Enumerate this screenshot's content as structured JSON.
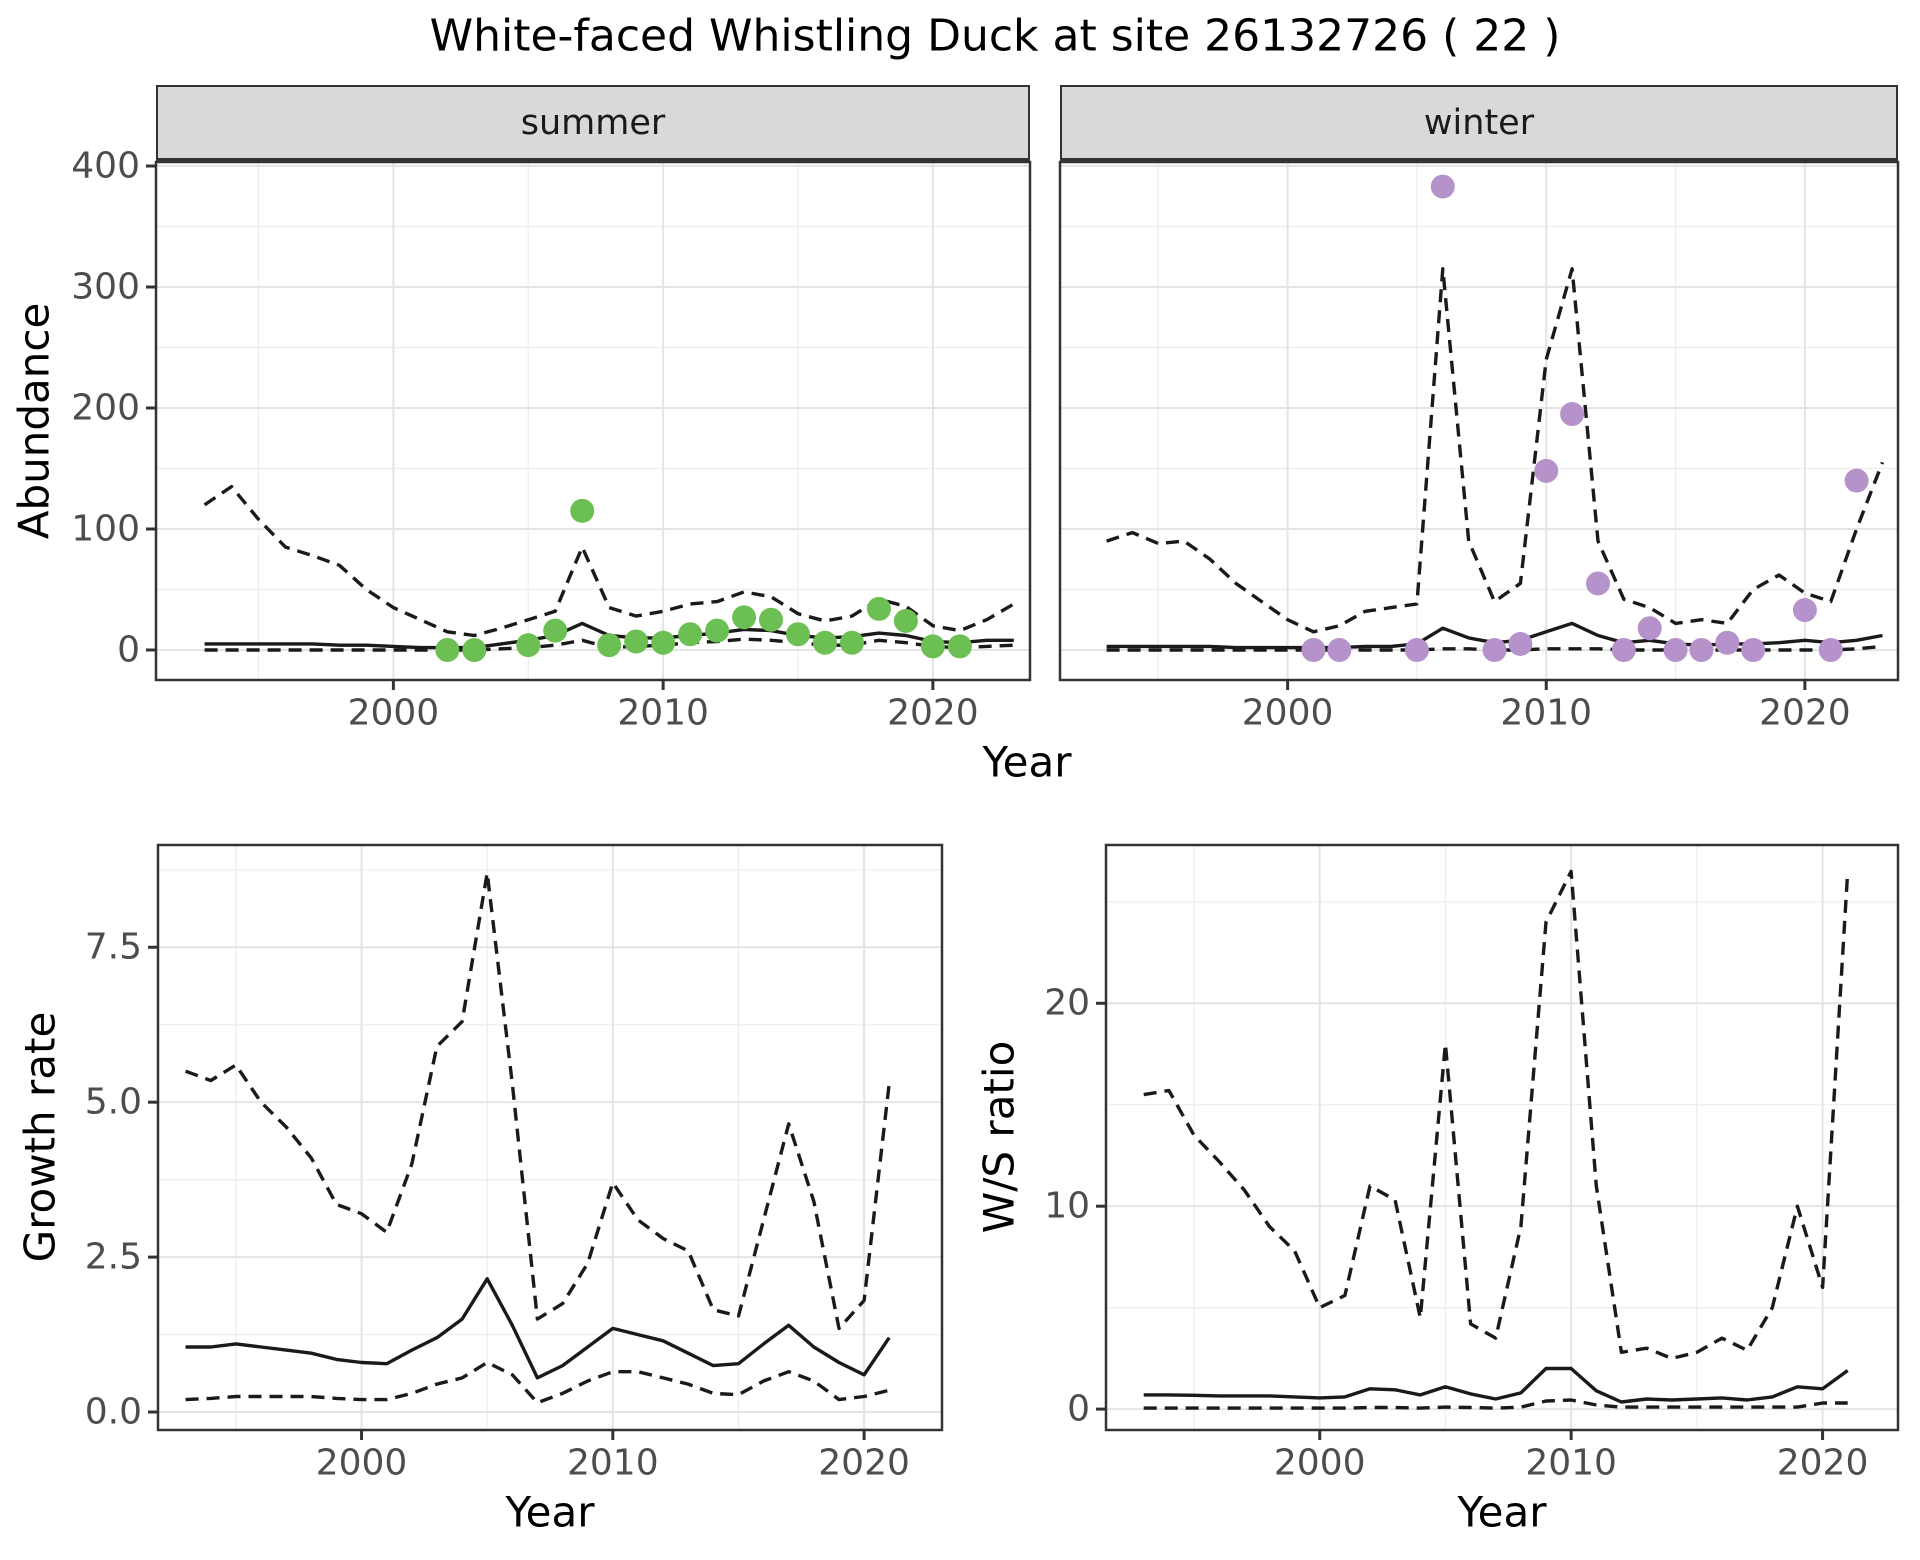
{
  "title": "White-faced Whistling Duck at site 26132726 ( 22 )",
  "facets": {
    "summer": "summer",
    "winter": "winter"
  },
  "axes": {
    "top": {
      "ylabel": "Abundance",
      "xlabel": "Year"
    },
    "growth": {
      "ylabel": "Growth rate",
      "xlabel": "Year"
    },
    "ws": {
      "ylabel": "W/S ratio",
      "xlabel": "Year"
    }
  },
  "colors": {
    "summer_point": "#6cbf53",
    "winter_point": "#b592c9",
    "line": "#1a1a1a",
    "strip_bg": "#d9d9d9",
    "panel_border": "#333333",
    "grid_major": "#e4e4e4",
    "grid_minor": "#efefef",
    "tick_text": "#4d4d4d"
  },
  "chart_data": [
    {
      "id": "summer",
      "type": "line",
      "facet_label": "summer",
      "xlabel": "Year",
      "ylabel": "Abundance",
      "xlim": [
        1991.2,
        2023.6
      ],
      "ylim": [
        -24.8,
        403.3
      ],
      "x_ticks": [
        2000,
        2010,
        2020
      ],
      "x_tick_labels": [
        "2000",
        "2010",
        "2020"
      ],
      "x_minor": [
        1995,
        2005,
        2015
      ],
      "y_ticks": [
        0,
        100,
        200,
        300,
        400
      ],
      "y_tick_labels": [
        "0",
        "100",
        "200",
        "300",
        "400"
      ],
      "y_minor": [
        50,
        150,
        250,
        350
      ],
      "show_y_axis": true,
      "series": [
        {
          "name": "upper-ci",
          "style": "dashed",
          "x": [
            1993,
            1994,
            1995,
            1996,
            1997,
            1998,
            1999,
            2000,
            2001,
            2002,
            2003,
            2004,
            2005,
            2006,
            2007,
            2008,
            2009,
            2010,
            2011,
            2012,
            2013,
            2014,
            2015,
            2016,
            2017,
            2018,
            2019,
            2020,
            2021,
            2022,
            2023
          ],
          "y": [
            120,
            135,
            108,
            85,
            78,
            70,
            50,
            35,
            25,
            15,
            12,
            18,
            25,
            32,
            85,
            35,
            28,
            32,
            38,
            40,
            48,
            44,
            30,
            24,
            28,
            42,
            36,
            20,
            16,
            25,
            38
          ]
        },
        {
          "name": "median",
          "style": "solid",
          "x": [
            1993,
            1994,
            1995,
            1996,
            1997,
            1998,
            1999,
            2000,
            2001,
            2002,
            2003,
            2004,
            2005,
            2006,
            2007,
            2008,
            2009,
            2010,
            2011,
            2012,
            2013,
            2014,
            2015,
            2016,
            2017,
            2018,
            2019,
            2020,
            2021,
            2022,
            2023
          ],
          "y": [
            5,
            5,
            5,
            5,
            5,
            4,
            4,
            3,
            2,
            2,
            2,
            5,
            8,
            12,
            22,
            12,
            10,
            10,
            12,
            14,
            17,
            16,
            12,
            10,
            11,
            14,
            12,
            7,
            6,
            8,
            8
          ]
        },
        {
          "name": "lower-ci",
          "style": "dashed",
          "x": [
            1993,
            1994,
            1995,
            1996,
            1997,
            1998,
            1999,
            2000,
            2001,
            2002,
            2003,
            2004,
            2005,
            2006,
            2007,
            2008,
            2009,
            2010,
            2011,
            2012,
            2013,
            2014,
            2015,
            2016,
            2017,
            2018,
            2019,
            2020,
            2021,
            2022,
            2023
          ],
          "y": [
            0,
            0,
            0,
            0,
            0,
            0,
            0,
            0,
            0,
            0,
            0,
            1,
            2,
            4,
            8,
            2,
            3,
            4,
            6,
            7,
            9,
            8,
            6,
            4,
            4,
            8,
            6,
            3,
            2,
            3,
            4
          ]
        },
        {
          "name": "observed-counts",
          "style": "points",
          "color": "#6cbf53",
          "x": [
            2002,
            2003,
            2005,
            2006,
            2007,
            2008,
            2009,
            2010,
            2011,
            2012,
            2013,
            2014,
            2015,
            2016,
            2017,
            2018,
            2019,
            2020,
            2021
          ],
          "y": [
            0,
            0,
            4,
            16,
            115,
            4,
            7,
            6,
            13,
            16,
            27,
            25,
            13,
            6,
            6,
            34,
            24,
            3,
            3
          ]
        }
      ]
    },
    {
      "id": "winter",
      "type": "line",
      "facet_label": "winter",
      "xlabel": "Year",
      "ylabel": "Abundance",
      "xlim": [
        1991.2,
        2023.6
      ],
      "ylim": [
        -24.8,
        403.3
      ],
      "x_ticks": [
        2000,
        2010,
        2020
      ],
      "x_tick_labels": [
        "2000",
        "2010",
        "2020"
      ],
      "x_minor": [
        1995,
        2005,
        2015
      ],
      "y_ticks": [
        0,
        100,
        200,
        300,
        400
      ],
      "y_tick_labels": [
        "0",
        "100",
        "200",
        "300",
        "400"
      ],
      "y_minor": [
        50,
        150,
        250,
        350
      ],
      "show_y_axis": false,
      "series": [
        {
          "name": "upper-ci",
          "style": "dashed",
          "x": [
            1993,
            1994,
            1995,
            1996,
            1997,
            1998,
            1999,
            2000,
            2001,
            2002,
            2003,
            2004,
            2005,
            2006,
            2007,
            2008,
            2009,
            2010,
            2011,
            2012,
            2013,
            2014,
            2015,
            2016,
            2017,
            2018,
            2019,
            2020,
            2021,
            2022,
            2023
          ],
          "y": [
            90,
            97,
            88,
            90,
            75,
            55,
            40,
            25,
            15,
            20,
            32,
            35,
            38,
            315,
            90,
            40,
            55,
            240,
            315,
            90,
            42,
            35,
            22,
            25,
            22,
            50,
            62,
            47,
            40,
            100,
            155
          ]
        },
        {
          "name": "median",
          "style": "solid",
          "x": [
            1993,
            1994,
            1995,
            1996,
            1997,
            1998,
            1999,
            2000,
            2001,
            2002,
            2003,
            2004,
            2005,
            2006,
            2007,
            2008,
            2009,
            2010,
            2011,
            2012,
            2013,
            2014,
            2015,
            2016,
            2017,
            2018,
            2019,
            2020,
            2021,
            2022,
            2023
          ],
          "y": [
            3,
            3,
            3,
            3,
            3,
            2,
            2,
            2,
            2,
            2,
            3,
            3,
            5,
            18,
            10,
            6,
            8,
            15,
            22,
            12,
            6,
            8,
            5,
            4,
            5,
            5,
            6,
            8,
            6,
            8,
            12
          ]
        },
        {
          "name": "lower-ci",
          "style": "dashed",
          "x": [
            1993,
            1994,
            1995,
            1996,
            1997,
            1998,
            1999,
            2000,
            2001,
            2002,
            2003,
            2004,
            2005,
            2006,
            2007,
            2008,
            2009,
            2010,
            2011,
            2012,
            2013,
            2014,
            2015,
            2016,
            2017,
            2018,
            2019,
            2020,
            2021,
            2022,
            2023
          ],
          "y": [
            0,
            0,
            0,
            0,
            0,
            0,
            0,
            0,
            0,
            0,
            0,
            0,
            0,
            1,
            1,
            0,
            0,
            1,
            1,
            1,
            0,
            0,
            0,
            0,
            0,
            0,
            0,
            0,
            0,
            1,
            3
          ]
        },
        {
          "name": "observed-counts",
          "style": "points",
          "color": "#b592c9",
          "x": [
            2001,
            2002,
            2005,
            2006,
            2008,
            2009,
            2010,
            2011,
            2012,
            2013,
            2014,
            2015,
            2016,
            2017,
            2018,
            2020,
            2021,
            2022
          ],
          "y": [
            0,
            0,
            0,
            383,
            0,
            5,
            148,
            195,
            55,
            0,
            18,
            0,
            0,
            6,
            0,
            33,
            0,
            140
          ]
        }
      ]
    },
    {
      "id": "growth",
      "type": "line",
      "facet_label": "",
      "xlabel": "Year",
      "ylabel": "Growth rate",
      "xlim": [
        1991.9,
        2023.1
      ],
      "ylim": [
        -0.29,
        9.15
      ],
      "x_ticks": [
        2000,
        2010,
        2020
      ],
      "x_tick_labels": [
        "2000",
        "2010",
        "2020"
      ],
      "x_minor": [
        1995,
        2005,
        2015
      ],
      "y_ticks": [
        0,
        2.5,
        5,
        7.5
      ],
      "y_tick_labels": [
        "0.0",
        "2.5",
        "5.0",
        "7.5"
      ],
      "y_minor": [
        1.25,
        3.75,
        6.25,
        8.75
      ],
      "show_y_axis": true,
      "series": [
        {
          "name": "upper-ci",
          "style": "dashed",
          "x": [
            1993,
            1994,
            1995,
            1996,
            1997,
            1998,
            1999,
            2000,
            2001,
            2002,
            2003,
            2004,
            2005,
            2006,
            2007,
            2008,
            2009,
            2010,
            2011,
            2012,
            2013,
            2014,
            2015,
            2016,
            2017,
            2018,
            2019,
            2020,
            2021
          ],
          "y": [
            5.5,
            5.35,
            5.6,
            5.0,
            4.6,
            4.1,
            3.35,
            3.2,
            2.9,
            4.0,
            5.9,
            6.3,
            8.7,
            5.3,
            1.5,
            1.75,
            2.4,
            3.7,
            3.1,
            2.8,
            2.6,
            1.65,
            1.55,
            3.1,
            4.65,
            3.4,
            1.35,
            1.8,
            5.3
          ]
        },
        {
          "name": "median",
          "style": "solid",
          "x": [
            1993,
            1994,
            1995,
            1996,
            1997,
            1998,
            1999,
            2000,
            2001,
            2002,
            2003,
            2004,
            2005,
            2006,
            2007,
            2008,
            2009,
            2010,
            2011,
            2012,
            2013,
            2014,
            2015,
            2016,
            2017,
            2018,
            2019,
            2020,
            2021
          ],
          "y": [
            1.05,
            1.05,
            1.1,
            1.05,
            1.0,
            0.95,
            0.85,
            0.8,
            0.78,
            1.0,
            1.2,
            1.5,
            2.15,
            1.4,
            0.55,
            0.75,
            1.05,
            1.35,
            1.25,
            1.15,
            0.95,
            0.75,
            0.78,
            1.1,
            1.4,
            1.05,
            0.8,
            0.6,
            1.2
          ]
        },
        {
          "name": "lower-ci",
          "style": "dashed",
          "x": [
            1993,
            1994,
            1995,
            1996,
            1997,
            1998,
            1999,
            2000,
            2001,
            2002,
            2003,
            2004,
            2005,
            2006,
            2007,
            2008,
            2009,
            2010,
            2011,
            2012,
            2013,
            2014,
            2015,
            2016,
            2017,
            2018,
            2019,
            2020,
            2021
          ],
          "y": [
            0.2,
            0.22,
            0.25,
            0.25,
            0.25,
            0.25,
            0.22,
            0.2,
            0.2,
            0.3,
            0.45,
            0.55,
            0.8,
            0.6,
            0.15,
            0.3,
            0.5,
            0.65,
            0.65,
            0.55,
            0.45,
            0.3,
            0.28,
            0.5,
            0.65,
            0.5,
            0.2,
            0.25,
            0.35
          ]
        }
      ]
    },
    {
      "id": "ws",
      "type": "line",
      "facet_label": "",
      "xlabel": "Year",
      "ylabel": "W/S ratio",
      "xlim": [
        1991.5,
        2023.0
      ],
      "ylim": [
        -1.03,
        27.8
      ],
      "x_ticks": [
        2000,
        2010,
        2020
      ],
      "x_tick_labels": [
        "2000",
        "2010",
        "2020"
      ],
      "x_minor": [
        1995,
        2005,
        2015
      ],
      "y_ticks": [
        0,
        10,
        20
      ],
      "y_tick_labels": [
        "0",
        "10",
        "20"
      ],
      "y_minor": [
        5,
        15,
        25
      ],
      "show_y_axis": true,
      "series": [
        {
          "name": "upper-ci",
          "style": "dashed",
          "x": [
            1993,
            1994,
            1995,
            1996,
            1997,
            1998,
            1999,
            2000,
            2001,
            2002,
            2003,
            2004,
            2005,
            2006,
            2007,
            2008,
            2009,
            2010,
            2011,
            2012,
            2013,
            2014,
            2015,
            2016,
            2017,
            2018,
            2019,
            2020,
            2021
          ],
          "y": [
            15.5,
            15.7,
            13.5,
            12.2,
            10.8,
            9.0,
            7.8,
            5.0,
            5.6,
            11.0,
            10.3,
            4.5,
            18.0,
            4.2,
            3.5,
            9.0,
            24.0,
            26.5,
            11.0,
            2.8,
            3.0,
            2.5,
            2.8,
            3.5,
            2.9,
            5.0,
            10.0,
            6.0,
            26.5
          ]
        },
        {
          "name": "median",
          "style": "solid",
          "x": [
            1993,
            1994,
            1995,
            1996,
            1997,
            1998,
            1999,
            2000,
            2001,
            2002,
            2003,
            2004,
            2005,
            2006,
            2007,
            2008,
            2009,
            2010,
            2011,
            2012,
            2013,
            2014,
            2015,
            2016,
            2017,
            2018,
            2019,
            2020,
            2021
          ],
          "y": [
            0.7,
            0.7,
            0.68,
            0.65,
            0.65,
            0.65,
            0.6,
            0.55,
            0.6,
            1.0,
            0.95,
            0.7,
            1.1,
            0.75,
            0.5,
            0.8,
            2.0,
            2.0,
            0.9,
            0.35,
            0.5,
            0.45,
            0.5,
            0.55,
            0.45,
            0.6,
            1.1,
            1.0,
            1.9
          ]
        },
        {
          "name": "lower-ci",
          "style": "dashed",
          "x": [
            1993,
            1994,
            1995,
            1996,
            1997,
            1998,
            1999,
            2000,
            2001,
            2002,
            2003,
            2004,
            2005,
            2006,
            2007,
            2008,
            2009,
            2010,
            2011,
            2012,
            2013,
            2014,
            2015,
            2016,
            2017,
            2018,
            2019,
            2020,
            2021
          ],
          "y": [
            0.05,
            0.05,
            0.05,
            0.05,
            0.05,
            0.05,
            0.05,
            0.05,
            0.05,
            0.08,
            0.08,
            0.05,
            0.1,
            0.08,
            0.05,
            0.1,
            0.4,
            0.45,
            0.2,
            0.1,
            0.1,
            0.1,
            0.1,
            0.1,
            0.1,
            0.1,
            0.1,
            0.3,
            0.3
          ]
        }
      ]
    }
  ]
}
